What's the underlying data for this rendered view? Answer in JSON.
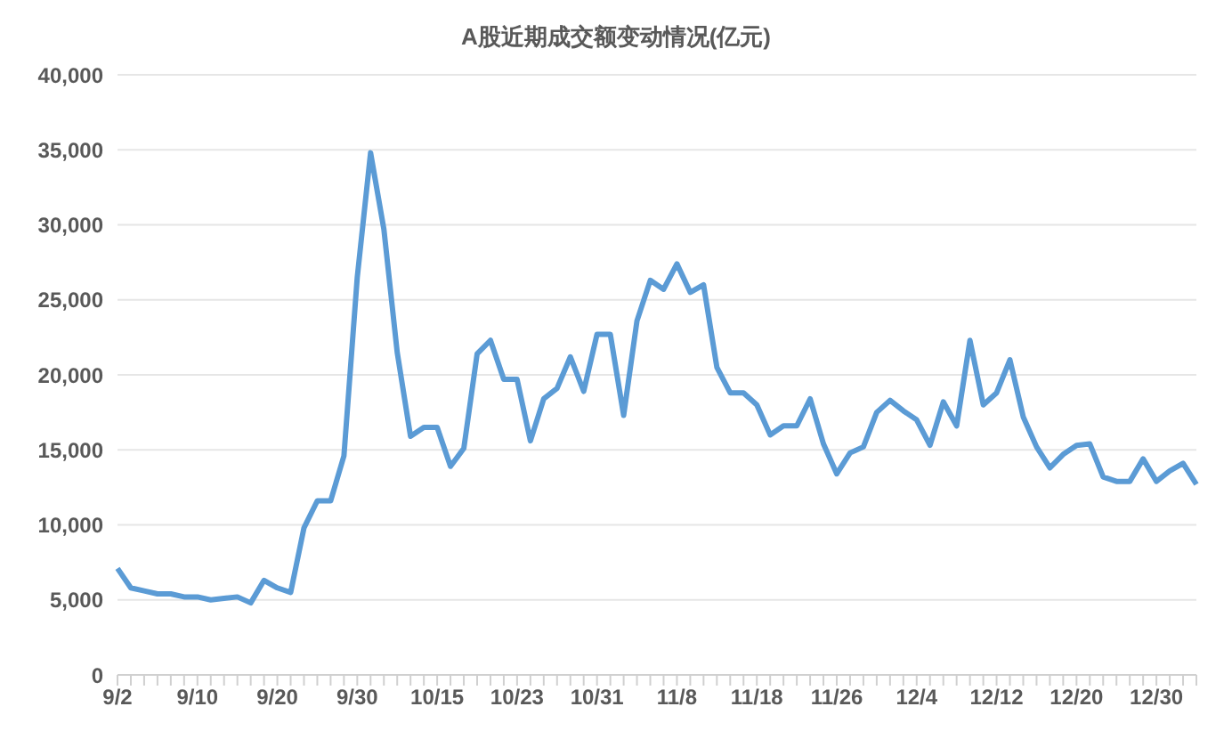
{
  "chart_data": {
    "type": "line",
    "title": "A股近期成交额变动情况(亿元)",
    "categories": [
      "9/2",
      null,
      null,
      null,
      null,
      null,
      "9/10",
      null,
      null,
      null,
      null,
      null,
      "9/20",
      null,
      null,
      null,
      null,
      null,
      "9/30",
      null,
      null,
      null,
      null,
      null,
      "10/15",
      null,
      null,
      null,
      null,
      null,
      "10/23",
      null,
      null,
      null,
      null,
      null,
      "10/31",
      null,
      null,
      null,
      null,
      null,
      "11/8",
      null,
      null,
      null,
      null,
      null,
      "11/18",
      null,
      null,
      null,
      null,
      null,
      "11/26",
      null,
      null,
      null,
      null,
      null,
      "12/4",
      null,
      null,
      null,
      null,
      null,
      "12/12",
      null,
      null,
      null,
      null,
      null,
      "12/20",
      null,
      null,
      null,
      null,
      null,
      "12/30",
      null,
      null,
      null
    ],
    "series": [
      {
        "color": "#5b9bd5",
        "values": [
          7100,
          5800,
          5600,
          5400,
          5400,
          5200,
          5200,
          5000,
          5100,
          5200,
          4800,
          6300,
          5800,
          5500,
          9800,
          11600,
          11600,
          14600,
          26500,
          34800,
          29700,
          21500,
          15900,
          16500,
          16500,
          13900,
          15100,
          21400,
          22300,
          19700,
          19700,
          15600,
          18400,
          19100,
          21200,
          18900,
          22700,
          22700,
          17300,
          23600,
          26300,
          25700,
          27400,
          25500,
          26000,
          20500,
          18800,
          18800,
          18000,
          16000,
          16600,
          16600,
          18400,
          15400,
          13400,
          14800,
          15200,
          17500,
          18300,
          17600,
          17000,
          15300,
          18200,
          16600,
          22300,
          18000,
          18800,
          21000,
          17200,
          15200,
          13800,
          14700,
          15300,
          15400,
          13200,
          12900,
          12900,
          14400,
          12900,
          13600,
          14100,
          12700
        ]
      }
    ],
    "ylim": [
      0,
      40000
    ],
    "yticks": [
      {
        "value": 0,
        "label": "0"
      },
      {
        "value": 5000,
        "label": "5,000"
      },
      {
        "value": 10000,
        "label": "10,000"
      },
      {
        "value": 15000,
        "label": "15,000"
      },
      {
        "value": 20000,
        "label": "20,000"
      },
      {
        "value": 25000,
        "label": "25,000"
      },
      {
        "value": 30000,
        "label": "30,000"
      },
      {
        "value": 35000,
        "label": "35,000"
      },
      {
        "value": 40000,
        "label": "40,000"
      }
    ],
    "grid": "y",
    "marker": "none",
    "line_style": "solid",
    "legend": false
  }
}
